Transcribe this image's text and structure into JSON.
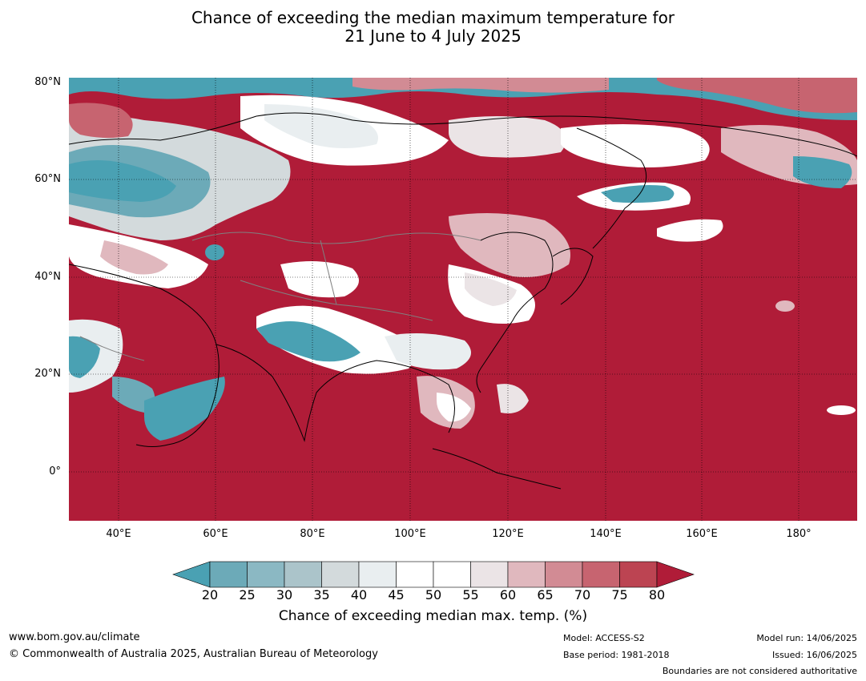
{
  "title": {
    "line1": "Chance of exceeding the median maximum temperature for",
    "line2": "21 June to 4 July 2025"
  },
  "map": {
    "region": "Asia",
    "lat_labels": [
      "80°N",
      "60°N",
      "40°N",
      "20°N",
      "0°"
    ],
    "lon_labels": [
      "40°E",
      "60°E",
      "80°E",
      "100°E",
      "120°E",
      "140°E",
      "160°E",
      "180°"
    ],
    "colors": {
      "below_20": "#4aa1b3",
      "very_high": "#b01c38",
      "high": "#d37a86",
      "neutral": "#ffffff",
      "low": "#8bbcc7",
      "ocean_default": "#b01c38"
    }
  },
  "colorbar": {
    "ticks": [
      "20",
      "25",
      "30",
      "35",
      "40",
      "45",
      "50",
      "55",
      "60",
      "65",
      "70",
      "75",
      "80"
    ],
    "colors": [
      "#4aa1b3",
      "#6caab8",
      "#8bb8c3",
      "#abc4ca",
      "#d3dadc",
      "#e9eef0",
      "#ffffff",
      "#ffffff",
      "#ebe4e6",
      "#e0b8be",
      "#d28b94",
      "#c76470",
      "#bc4452",
      "#b01c38"
    ],
    "title": "Chance of exceeding median max. temp. (%)"
  },
  "footer": {
    "website": "www.bom.gov.au/climate",
    "copyright": "© Commonwealth of Australia 2025, Australian Bureau of Meteorology",
    "model": "Model: ACCESS-S2",
    "base_period": "Base period: 1981-2018",
    "model_run": "Model run: 14/06/2025",
    "issued": "Issued: 16/06/2025",
    "disclaimer": "Boundaries are not considered authoritative"
  }
}
